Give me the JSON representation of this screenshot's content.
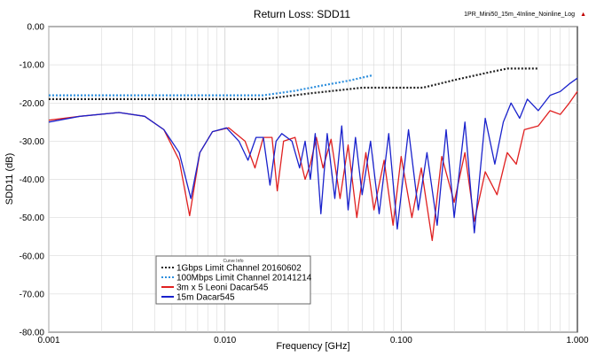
{
  "title": "Return Loss: SDD11",
  "project_label": "1PR_Mini50_15m_4Inline_Noinline_Log",
  "legend_header": "Curve Info",
  "colors": {
    "s1": "#222222",
    "s2": "#2f8fdd",
    "s3": "#e02020",
    "s4": "#1a22cc",
    "grid": "#d0d0d0",
    "axis": "#000000"
  },
  "chart_data": {
    "type": "line",
    "title": "Return Loss: SDD11",
    "xlabel": "Frequency [GHz]",
    "ylabel": "SDD11 (dB)",
    "xscale": "log",
    "xlim": [
      0.001,
      1.0
    ],
    "ylim": [
      -80,
      0
    ],
    "grid": true,
    "legend_position": "bottom-left",
    "x_ticks": [
      {
        "v": 0.001,
        "label": "0.001"
      },
      {
        "v": 0.01,
        "label": "0.010"
      },
      {
        "v": 0.1,
        "label": "0.100"
      },
      {
        "v": 1.0,
        "label": "1.000"
      }
    ],
    "y_ticks": [
      {
        "v": 0,
        "label": "0.00"
      },
      {
        "v": -10,
        "label": "-10.00"
      },
      {
        "v": -20,
        "label": "-20.00"
      },
      {
        "v": -30,
        "label": "-30.00"
      },
      {
        "v": -40,
        "label": "-40.00"
      },
      {
        "v": -50,
        "label": "-50.00"
      },
      {
        "v": -60,
        "label": "-60.00"
      },
      {
        "v": -70,
        "label": "-70.00"
      },
      {
        "v": -80,
        "label": "-80.00"
      }
    ],
    "series": [
      {
        "name": "1Gbps Limit Channel 20160602",
        "color": "#222222",
        "style": "dotted",
        "x": [
          0.001,
          0.0165,
          0.03,
          0.06,
          0.133,
          0.2,
          0.3,
          0.4,
          0.6
        ],
        "y": [
          -19,
          -19,
          -17.5,
          -16,
          -16,
          -14,
          -12.2,
          -11,
          -11
        ]
      },
      {
        "name": "100Mbps Limit Channel 20141214",
        "color": "#2f8fdd",
        "style": "dotted",
        "x": [
          0.001,
          0.0165,
          0.025,
          0.035,
          0.05,
          0.068
        ],
        "y": [
          -18,
          -18,
          -16.8,
          -15.5,
          -14.2,
          -12.8
        ]
      },
      {
        "name": "3m x 5 Leoni Dacar545",
        "color": "#e02020",
        "style": "solid",
        "x": [
          0.001,
          0.0015,
          0.0025,
          0.0035,
          0.0045,
          0.0055,
          0.0063,
          0.0072,
          0.0085,
          0.0105,
          0.013,
          0.0148,
          0.0165,
          0.0185,
          0.0198,
          0.0215,
          0.025,
          0.0285,
          0.0305,
          0.033,
          0.036,
          0.04,
          0.045,
          0.05,
          0.056,
          0.063,
          0.07,
          0.08,
          0.09,
          0.1,
          0.115,
          0.13,
          0.15,
          0.17,
          0.2,
          0.23,
          0.26,
          0.3,
          0.35,
          0.4,
          0.45,
          0.5,
          0.6,
          0.7,
          0.8,
          0.9,
          1.0
        ],
        "y": [
          -24.5,
          -23.5,
          -22.5,
          -23.5,
          -27,
          -35,
          -49.5,
          -33,
          -27.5,
          -26.5,
          -30,
          -37,
          -29,
          -29,
          -43,
          -30,
          -29,
          -40,
          -36,
          -29,
          -37,
          -29.5,
          -45,
          -31,
          -50,
          -33,
          -48,
          -35,
          -52,
          -34,
          -50,
          -37,
          -56,
          -34,
          -46,
          -33,
          -51,
          -38,
          -44,
          -33,
          -36,
          -27,
          -26,
          -22,
          -23,
          -20,
          -17
        ]
      },
      {
        "name": "15m Dacar545",
        "color": "#1a22cc",
        "style": "solid",
        "x": [
          0.001,
          0.0015,
          0.0025,
          0.0035,
          0.0045,
          0.0055,
          0.0064,
          0.0072,
          0.0085,
          0.0102,
          0.012,
          0.0135,
          0.015,
          0.0165,
          0.018,
          0.0195,
          0.021,
          0.024,
          0.0265,
          0.0285,
          0.0305,
          0.0325,
          0.035,
          0.038,
          0.042,
          0.046,
          0.05,
          0.055,
          0.06,
          0.067,
          0.075,
          0.085,
          0.095,
          0.11,
          0.125,
          0.14,
          0.16,
          0.18,
          0.2,
          0.23,
          0.26,
          0.3,
          0.34,
          0.38,
          0.42,
          0.47,
          0.52,
          0.6,
          0.7,
          0.8,
          0.9,
          1.0
        ],
        "y": [
          -25,
          -23.5,
          -22.5,
          -23.5,
          -27,
          -33,
          -45,
          -33,
          -27.5,
          -26.5,
          -30,
          -35,
          -29,
          -29,
          -41.5,
          -30,
          -28,
          -30,
          -37,
          -30,
          -40,
          -28,
          -49,
          -28,
          -45,
          -26,
          -48,
          -29,
          -44,
          -30,
          -49,
          -28,
          -53,
          -27,
          -48,
          -33,
          -52,
          -27,
          -50,
          -25,
          -54,
          -24,
          -36,
          -25,
          -20,
          -24,
          -19,
          -22,
          -18,
          -17,
          -15,
          -13.5
        ]
      }
    ]
  }
}
